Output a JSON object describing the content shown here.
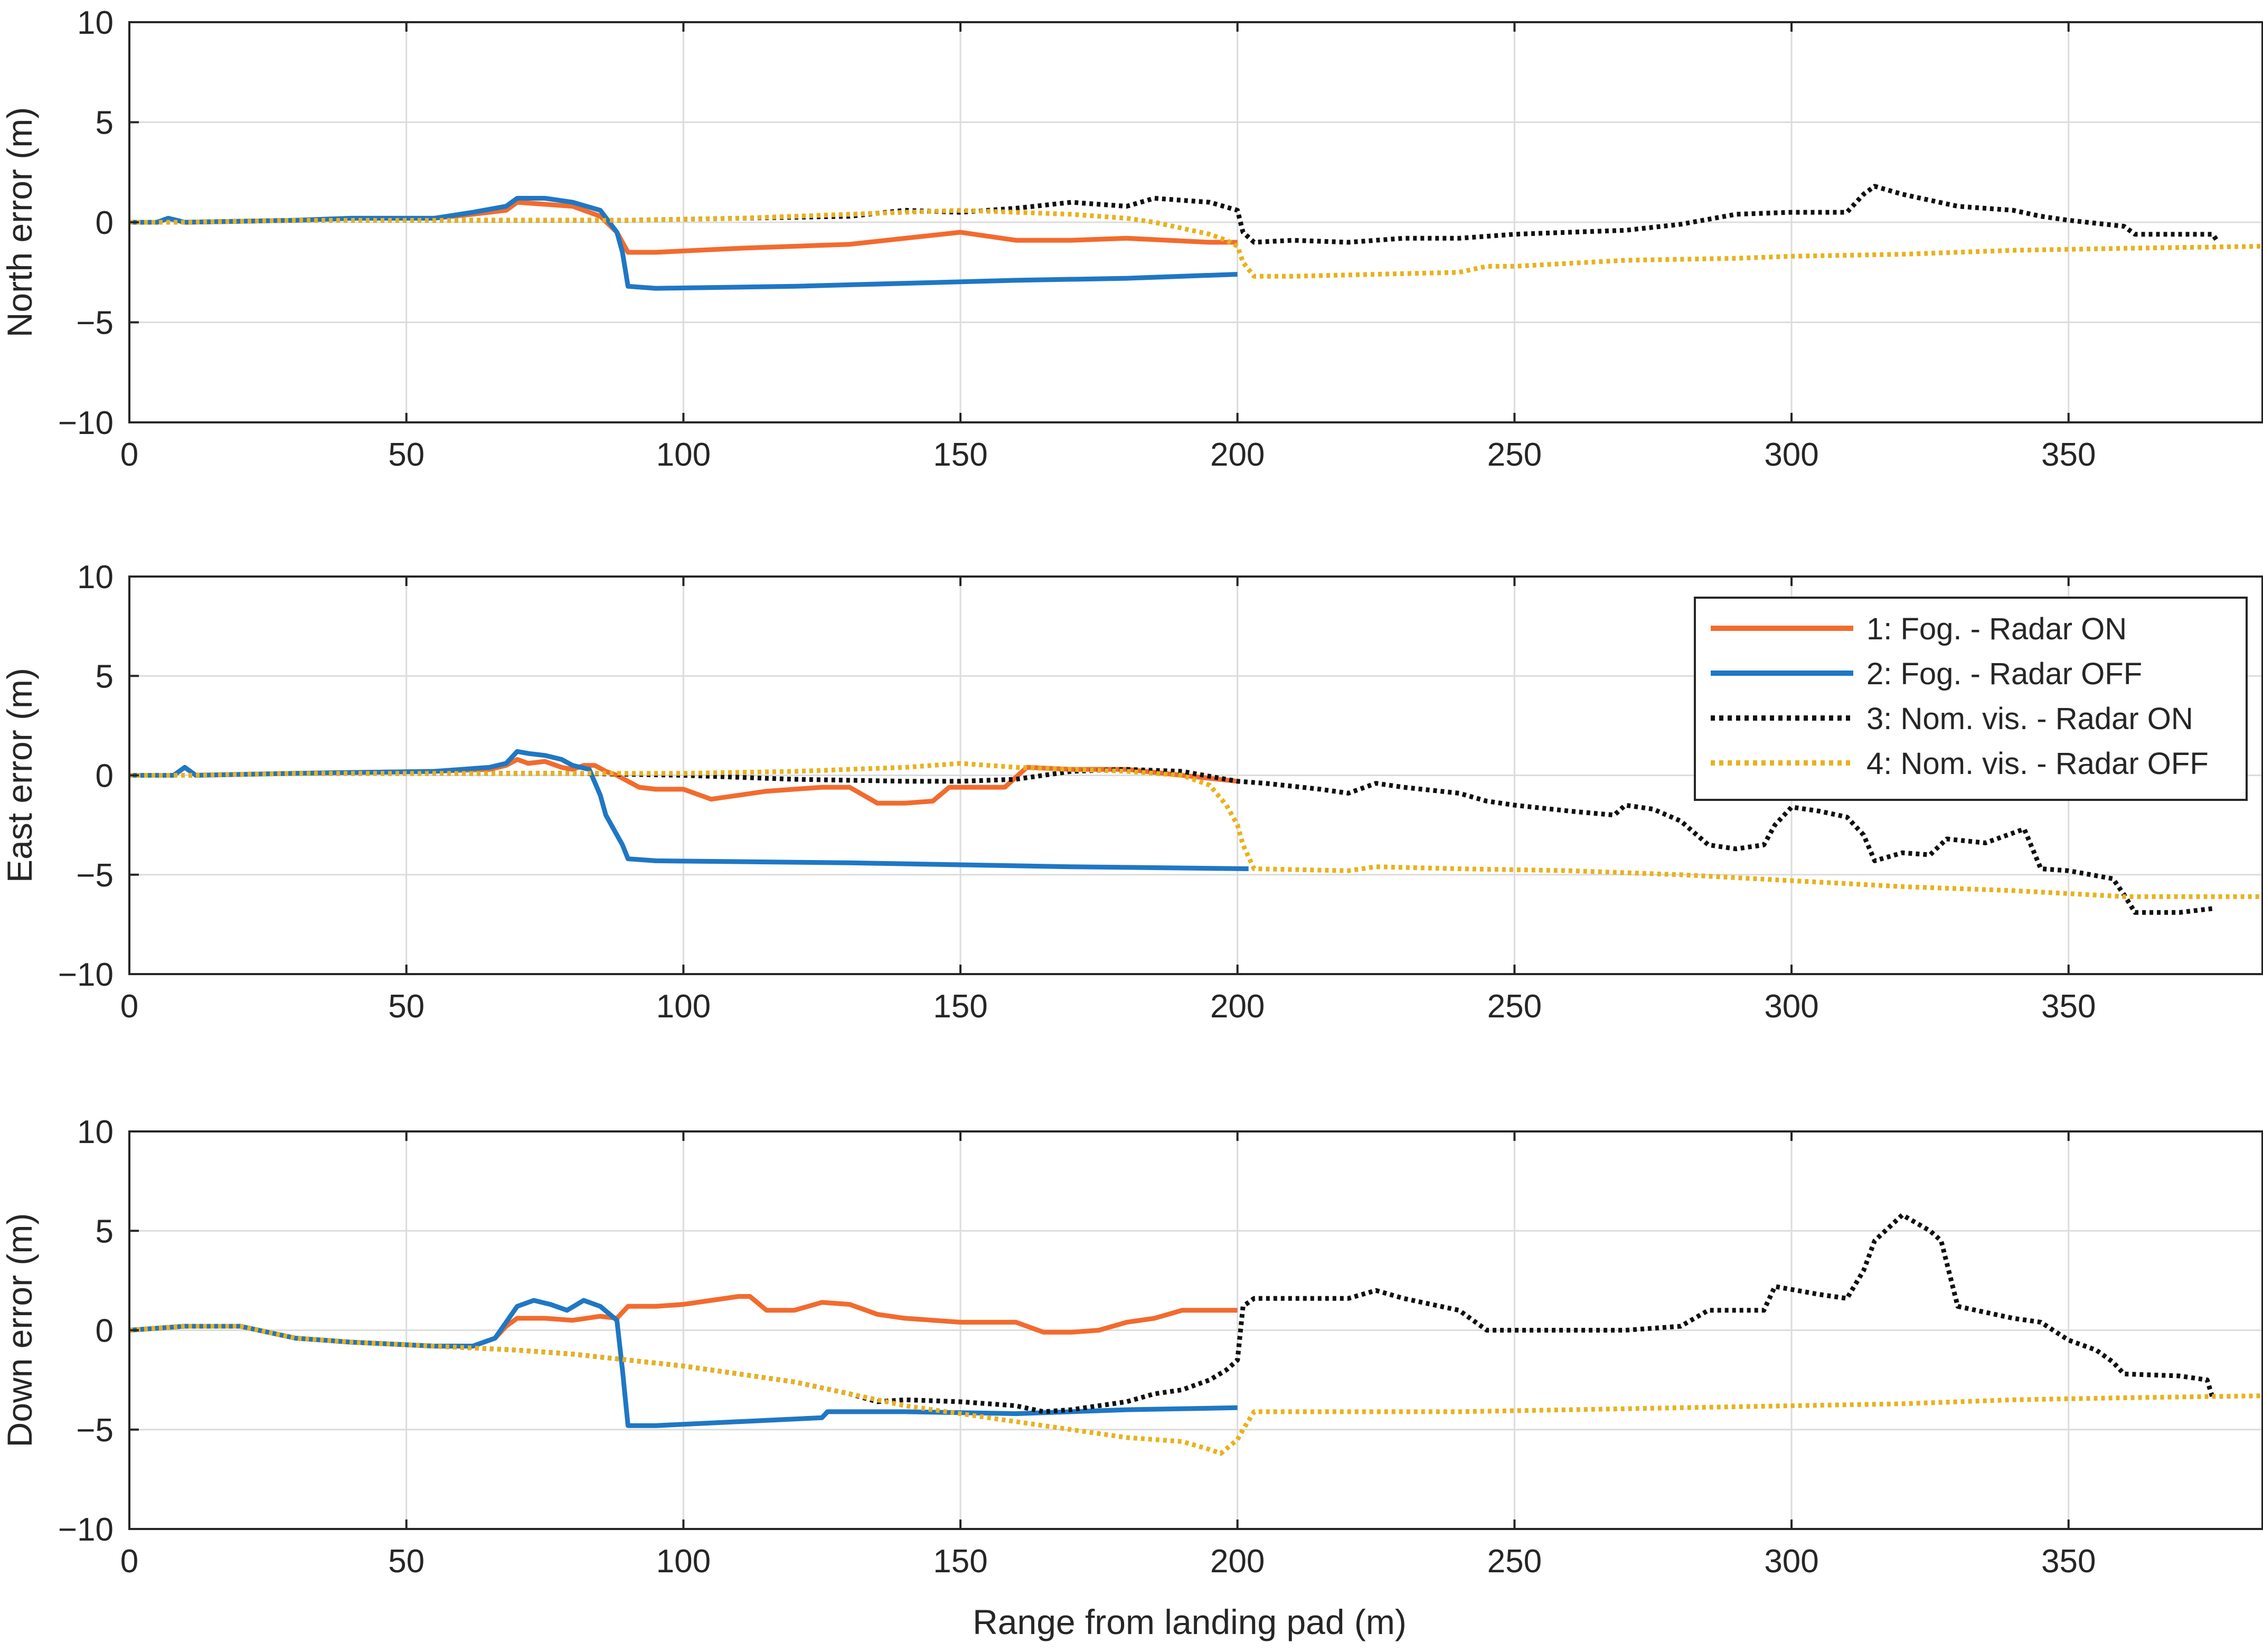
{
  "figure": {
    "xlabel": "Range from landing pad (m)",
    "colors": {
      "fog_radar_on": "#f26b2e",
      "fog_radar_off": "#1f77c4",
      "nom_radar_on": "#111111",
      "nom_radar_off": "#e8b21c",
      "grid": "#dcdcdc",
      "axis": "#262626"
    }
  },
  "legend": [
    {
      "label": "1: Fog. - Radar ON",
      "style": "solid",
      "color": "#f26b2e"
    },
    {
      "label": "2: Fog. - Radar OFF",
      "style": "solid",
      "color": "#1f77c4"
    },
    {
      "label": "3: Nom. vis. - Radar ON",
      "style": "dotted",
      "color": "#111111"
    },
    {
      "label": "4: Nom. vis. - Radar OFF",
      "style": "dotted",
      "color": "#e8b21c"
    }
  ],
  "chart_data": [
    {
      "type": "line",
      "title": "",
      "xlabel": "",
      "ylabel": "North error (m)",
      "xlim": [
        0,
        385
      ],
      "ylim": [
        -10,
        10
      ],
      "xticks": [
        0,
        50,
        100,
        150,
        200,
        250,
        300,
        350
      ],
      "yticks": [
        -10,
        -5,
        0,
        5,
        10
      ],
      "xtick_labels": [
        "0",
        "50",
        "100",
        "150",
        "200",
        "250",
        "300",
        "350"
      ],
      "ytick_labels": [
        "−10",
        "−5",
        "0",
        "5",
        "10"
      ],
      "grid": true,
      "series": [
        {
          "name": "1: Fog. - Radar ON",
          "x": [
            0,
            5,
            7,
            10,
            30,
            40,
            55,
            62,
            68,
            70,
            75,
            80,
            85,
            88,
            90,
            95,
            110,
            130,
            150,
            160,
            170,
            180,
            195,
            200
          ],
          "y": [
            0,
            0,
            0.2,
            0,
            0.1,
            0.2,
            0.2,
            0.4,
            0.6,
            1.0,
            0.9,
            0.8,
            0.3,
            -0.5,
            -1.5,
            -1.5,
            -1.3,
            -1.1,
            -0.5,
            -0.9,
            -0.9,
            -0.8,
            -1.0,
            -1.0
          ]
        },
        {
          "name": "2: Fog. - Radar OFF",
          "x": [
            0,
            5,
            7,
            10,
            30,
            40,
            55,
            62,
            68,
            70,
            75,
            80,
            85,
            88,
            89,
            90,
            95,
            120,
            160,
            180,
            200
          ],
          "y": [
            0,
            0,
            0.2,
            0,
            0.1,
            0.2,
            0.2,
            0.5,
            0.8,
            1.2,
            1.2,
            1.0,
            0.6,
            -0.5,
            -1.5,
            -3.2,
            -3.3,
            -3.2,
            -2.9,
            -2.8,
            -2.6
          ]
        },
        {
          "name": "3: Nom. vis. - Radar ON",
          "x": [
            0,
            10,
            30,
            50,
            70,
            90,
            110,
            130,
            140,
            150,
            160,
            170,
            180,
            185,
            190,
            195,
            200,
            201,
            203,
            210,
            220,
            230,
            240,
            250,
            260,
            270,
            280,
            290,
            300,
            305,
            310,
            313,
            315,
            320,
            330,
            340,
            345,
            350,
            360,
            362,
            370,
            376,
            377
          ],
          "y": [
            0,
            0,
            0.1,
            0.1,
            0.1,
            0.1,
            0.2,
            0.3,
            0.6,
            0.5,
            0.7,
            1.0,
            0.8,
            1.2,
            1.1,
            1.0,
            0.6,
            -0.5,
            -1.0,
            -0.9,
            -1.0,
            -0.8,
            -0.8,
            -0.6,
            -0.5,
            -0.4,
            -0.1,
            0.4,
            0.5,
            0.5,
            0.5,
            1.4,
            1.8,
            1.4,
            0.8,
            0.6,
            0.3,
            0.1,
            -0.2,
            -0.6,
            -0.6,
            -0.6,
            -1.0
          ]
        },
        {
          "name": "4: Nom. vis. - Radar OFF",
          "x": [
            0,
            10,
            30,
            50,
            70,
            90,
            110,
            130,
            140,
            150,
            160,
            170,
            180,
            185,
            190,
            195,
            198,
            200,
            201,
            203,
            210,
            225,
            240,
            245,
            250,
            270,
            290,
            300,
            320,
            340,
            360,
            385
          ],
          "y": [
            0,
            0,
            0.1,
            0.1,
            0.1,
            0.1,
            0.2,
            0.4,
            0.5,
            0.6,
            0.5,
            0.4,
            0.2,
            0.0,
            -0.3,
            -0.6,
            -0.9,
            -1.2,
            -2.0,
            -2.7,
            -2.7,
            -2.6,
            -2.5,
            -2.2,
            -2.2,
            -1.9,
            -1.8,
            -1.7,
            -1.6,
            -1.4,
            -1.3,
            -1.2
          ]
        }
      ]
    },
    {
      "type": "line",
      "title": "",
      "xlabel": "",
      "ylabel": "East error (m)",
      "xlim": [
        0,
        385
      ],
      "ylim": [
        -10,
        10
      ],
      "xticks": [
        0,
        50,
        100,
        150,
        200,
        250,
        300,
        350
      ],
      "yticks": [
        -10,
        -5,
        0,
        5,
        10
      ],
      "xtick_labels": [
        "0",
        "50",
        "100",
        "150",
        "200",
        "250",
        "300",
        "350"
      ],
      "ytick_labels": [
        "−10",
        "−5",
        "0",
        "5",
        "10"
      ],
      "grid": true,
      "legend_position": "top-right",
      "series": [
        {
          "name": "1: Fog. - Radar ON",
          "x": [
            0,
            8,
            10,
            12,
            30,
            55,
            65,
            68,
            70,
            72,
            75,
            78,
            80,
            82,
            84,
            86,
            88,
            90,
            92,
            95,
            100,
            105,
            110,
            115,
            120,
            125,
            130,
            135,
            140,
            145,
            148,
            150,
            155,
            158,
            162,
            170,
            180,
            190,
            200
          ],
          "y": [
            0,
            0,
            0.4,
            0,
            0.1,
            0.2,
            0.3,
            0.5,
            0.8,
            0.6,
            0.7,
            0.4,
            0.3,
            0.5,
            0.5,
            0.2,
            0.0,
            -0.3,
            -0.6,
            -0.7,
            -0.7,
            -1.2,
            -1.0,
            -0.8,
            -0.7,
            -0.6,
            -0.6,
            -1.4,
            -1.4,
            -1.3,
            -0.6,
            -0.6,
            -0.6,
            -0.6,
            0.4,
            0.3,
            0.3,
            0.0,
            -0.3
          ]
        },
        {
          "name": "2: Fog. - Radar OFF",
          "x": [
            0,
            8,
            10,
            12,
            30,
            55,
            65,
            68,
            70,
            72,
            75,
            78,
            80,
            83,
            85,
            86,
            88,
            89,
            90,
            95,
            130,
            170,
            202
          ],
          "y": [
            0,
            0,
            0.4,
            0,
            0.1,
            0.2,
            0.4,
            0.6,
            1.2,
            1.1,
            1.0,
            0.8,
            0.5,
            0.3,
            -1.0,
            -2.0,
            -3.0,
            -3.5,
            -4.2,
            -4.3,
            -4.4,
            -4.6,
            -4.7
          ]
        },
        {
          "name": "3: Nom. vis. - Radar ON",
          "x": [
            0,
            10,
            30,
            60,
            80,
            100,
            120,
            140,
            150,
            160,
            170,
            180,
            190,
            200,
            205,
            215,
            220,
            225,
            230,
            240,
            245,
            250,
            260,
            268,
            270,
            275,
            280,
            285,
            290,
            295,
            297,
            300,
            305,
            310,
            313,
            315,
            320,
            325,
            328,
            335,
            340,
            342,
            345,
            350,
            358,
            360,
            362,
            370,
            376
          ],
          "y": [
            0,
            0,
            0.1,
            0.1,
            0.1,
            0.0,
            -0.2,
            -0.3,
            -0.3,
            -0.2,
            0.2,
            0.3,
            0.2,
            -0.3,
            -0.4,
            -0.7,
            -0.9,
            -0.4,
            -0.6,
            -0.9,
            -1.3,
            -1.5,
            -1.8,
            -2.0,
            -1.5,
            -1.7,
            -2.3,
            -3.5,
            -3.7,
            -3.5,
            -2.5,
            -1.6,
            -1.8,
            -2.1,
            -3.0,
            -4.3,
            -3.9,
            -4.0,
            -3.2,
            -3.4,
            -2.9,
            -2.7,
            -4.7,
            -4.8,
            -5.2,
            -6.0,
            -6.9,
            -6.9,
            -6.7
          ]
        },
        {
          "name": "4: Nom. vis. - Radar OFF",
          "x": [
            0,
            10,
            30,
            60,
            80,
            100,
            120,
            140,
            150,
            160,
            170,
            180,
            190,
            195,
            198,
            200,
            201,
            203,
            220,
            225,
            240,
            260,
            280,
            300,
            320,
            340,
            360,
            385
          ],
          "y": [
            0,
            0,
            0.1,
            0.1,
            0.1,
            0.1,
            0.2,
            0.4,
            0.6,
            0.4,
            0.3,
            0.2,
            0.0,
            -0.5,
            -1.5,
            -2.5,
            -3.5,
            -4.7,
            -4.8,
            -4.6,
            -4.7,
            -4.8,
            -5.0,
            -5.3,
            -5.6,
            -5.8,
            -6.1,
            -6.1
          ]
        }
      ]
    },
    {
      "type": "line",
      "title": "",
      "xlabel": "Range from landing pad (m)",
      "ylabel": "Down error (m)",
      "xlim": [
        0,
        385
      ],
      "ylim": [
        -10,
        10
      ],
      "xticks": [
        0,
        50,
        100,
        150,
        200,
        250,
        300,
        350
      ],
      "yticks": [
        -10,
        -5,
        0,
        5,
        10
      ],
      "xtick_labels": [
        "0",
        "50",
        "100",
        "150",
        "200",
        "250",
        "300",
        "350"
      ],
      "ytick_labels": [
        "−10",
        "−5",
        "0",
        "5",
        "10"
      ],
      "grid": true,
      "series": [
        {
          "name": "1: Fog. - Radar ON",
          "x": [
            0,
            10,
            20,
            30,
            40,
            55,
            62,
            66,
            68,
            70,
            75,
            80,
            85,
            88,
            90,
            95,
            100,
            105,
            110,
            112,
            115,
            120,
            125,
            130,
            135,
            140,
            150,
            160,
            165,
            170,
            175,
            180,
            185,
            190,
            200
          ],
          "y": [
            0,
            0.2,
            0.2,
            -0.4,
            -0.6,
            -0.8,
            -0.8,
            -0.4,
            0.2,
            0.6,
            0.6,
            0.5,
            0.7,
            0.6,
            1.2,
            1.2,
            1.3,
            1.5,
            1.7,
            1.7,
            1.0,
            1.0,
            1.4,
            1.3,
            0.8,
            0.6,
            0.4,
            0.4,
            -0.1,
            -0.1,
            0.0,
            0.4,
            0.6,
            1.0,
            1.0
          ]
        },
        {
          "name": "2: Fog. - Radar OFF",
          "x": [
            0,
            10,
            20,
            30,
            40,
            55,
            62,
            66,
            68,
            70,
            73,
            76,
            79,
            82,
            85,
            88,
            89,
            90,
            95,
            110,
            125,
            126,
            140,
            160,
            180,
            200
          ],
          "y": [
            0,
            0.2,
            0.2,
            -0.4,
            -0.6,
            -0.8,
            -0.8,
            -0.4,
            0.4,
            1.2,
            1.5,
            1.3,
            1.0,
            1.5,
            1.2,
            0.5,
            -2.0,
            -4.8,
            -4.8,
            -4.6,
            -4.4,
            -4.1,
            -4.1,
            -4.2,
            -4.0,
            -3.9
          ]
        },
        {
          "name": "3: Nom. vis. - Radar ON",
          "x": [
            0,
            10,
            20,
            30,
            40,
            55,
            70,
            80,
            90,
            100,
            110,
            120,
            130,
            135,
            140,
            150,
            160,
            165,
            170,
            180,
            185,
            190,
            195,
            198,
            200,
            201,
            203,
            210,
            220,
            225,
            230,
            240,
            245,
            250,
            270,
            280,
            285,
            290,
            295,
            297,
            305,
            310,
            313,
            315,
            320,
            325,
            327,
            330,
            340,
            345,
            350,
            355,
            358,
            360,
            370,
            375,
            376
          ],
          "y": [
            0,
            0.2,
            0.2,
            -0.4,
            -0.6,
            -0.8,
            -1.0,
            -1.2,
            -1.5,
            -1.8,
            -2.2,
            -2.6,
            -3.2,
            -3.6,
            -3.5,
            -3.6,
            -3.8,
            -4.1,
            -4.0,
            -3.6,
            -3.2,
            -3.0,
            -2.5,
            -2.0,
            -1.5,
            1.2,
            1.6,
            1.6,
            1.6,
            2.0,
            1.6,
            1.0,
            0.0,
            0.0,
            0.0,
            0.2,
            1.0,
            1.0,
            1.0,
            2.2,
            1.8,
            1.6,
            3.0,
            4.5,
            5.8,
            5.0,
            4.5,
            1.2,
            0.6,
            0.4,
            -0.5,
            -1.0,
            -1.6,
            -2.2,
            -2.3,
            -2.5,
            -3.4
          ]
        },
        {
          "name": "4: Nom. vis. - Radar OFF",
          "x": [
            0,
            10,
            20,
            30,
            40,
            55,
            70,
            80,
            90,
            100,
            110,
            120,
            130,
            140,
            150,
            160,
            170,
            180,
            185,
            190,
            195,
            197,
            200,
            201,
            203,
            220,
            240,
            260,
            280,
            300,
            320,
            340,
            360,
            385
          ],
          "y": [
            0,
            0.2,
            0.2,
            -0.4,
            -0.6,
            -0.8,
            -1.0,
            -1.2,
            -1.5,
            -1.8,
            -2.2,
            -2.6,
            -3.2,
            -3.8,
            -4.2,
            -4.6,
            -5.0,
            -5.4,
            -5.5,
            -5.6,
            -6.0,
            -6.2,
            -5.5,
            -5.0,
            -4.1,
            -4.1,
            -4.1,
            -4.0,
            -3.9,
            -3.8,
            -3.7,
            -3.5,
            -3.4,
            -3.3
          ]
        }
      ]
    }
  ]
}
